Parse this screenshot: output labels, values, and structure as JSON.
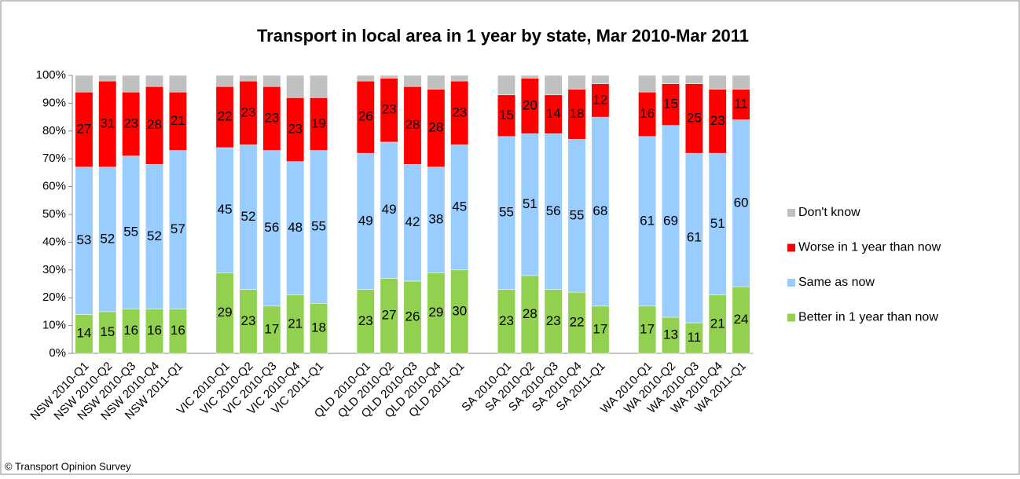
{
  "chart_data": {
    "type": "stacked_bar_100",
    "title": "Transport in local area in 1 year by state, Mar 2010-Mar 2011",
    "footer": "© Transport Opinion Survey",
    "categories": [
      "NSW 2010-Q1",
      "NSW 2010-Q2",
      "NSW 2010-Q3",
      "NSW 2010-Q4",
      "NSW 2011-Q1",
      null,
      "VIC 2010-Q1",
      "VIC 2010-Q2",
      "VIC 2010-Q3",
      "VIC 2010-Q4",
      "VIC 2011-Q1",
      null,
      "QLD 2010-Q1",
      "QLD 2010-Q2",
      "QLD 2010-Q3",
      "QLD 2010-Q4",
      "QLD 2011-Q1",
      null,
      "SA 2010-Q1",
      "SA 2010-Q2",
      "SA 2010-Q3",
      "SA 2010-Q4",
      "SA 2011-Q1",
      null,
      "WA 2010-Q1",
      "WA 2010-Q2",
      "WA 2010-Q3",
      "WA 2010-Q4",
      "WA 2011-Q1"
    ],
    "series": [
      {
        "name": "Better in 1 year than now",
        "color": "#92d050",
        "data_labels": true,
        "values": [
          14,
          15,
          16,
          16,
          16,
          null,
          29,
          23,
          17,
          21,
          18,
          null,
          23,
          27,
          26,
          29,
          30,
          null,
          23,
          28,
          23,
          22,
          17,
          null,
          17,
          13,
          11,
          21,
          24
        ]
      },
      {
        "name": "Same as now",
        "color": "#99ccff",
        "data_labels": true,
        "values": [
          53,
          52,
          55,
          52,
          57,
          null,
          45,
          52,
          56,
          48,
          55,
          null,
          49,
          49,
          42,
          38,
          45,
          null,
          55,
          51,
          56,
          55,
          68,
          null,
          61,
          69,
          61,
          51,
          60
        ]
      },
      {
        "name": "Worse in 1 year than now",
        "color": "#ff0000",
        "data_labels": true,
        "values": [
          27,
          31,
          23,
          28,
          21,
          null,
          22,
          23,
          23,
          23,
          19,
          null,
          26,
          23,
          28,
          28,
          23,
          null,
          15,
          20,
          14,
          18,
          12,
          null,
          16,
          15,
          25,
          23,
          11
        ]
      },
      {
        "name": "Don't know",
        "color": "#c0c0c0",
        "data_labels": false,
        "values": [
          6,
          2,
          6,
          4,
          6,
          null,
          4,
          2,
          4,
          8,
          8,
          null,
          2,
          1,
          4,
          5,
          2,
          null,
          7,
          1,
          7,
          5,
          3,
          null,
          6,
          3,
          3,
          5,
          5
        ]
      }
    ],
    "ylim": [
      0,
      100
    ],
    "yticks": [
      {
        "value": 0,
        "label": "0%"
      },
      {
        "value": 10,
        "label": "10%"
      },
      {
        "value": 20,
        "label": "20%"
      },
      {
        "value": 30,
        "label": "30%"
      },
      {
        "value": 40,
        "label": "40%"
      },
      {
        "value": 50,
        "label": "50%"
      },
      {
        "value": 60,
        "label": "60%"
      },
      {
        "value": 70,
        "label": "70%"
      },
      {
        "value": 80,
        "label": "80%"
      },
      {
        "value": 90,
        "label": "90%"
      },
      {
        "value": 100,
        "label": "100%"
      }
    ],
    "grid": false,
    "legend": "right"
  }
}
